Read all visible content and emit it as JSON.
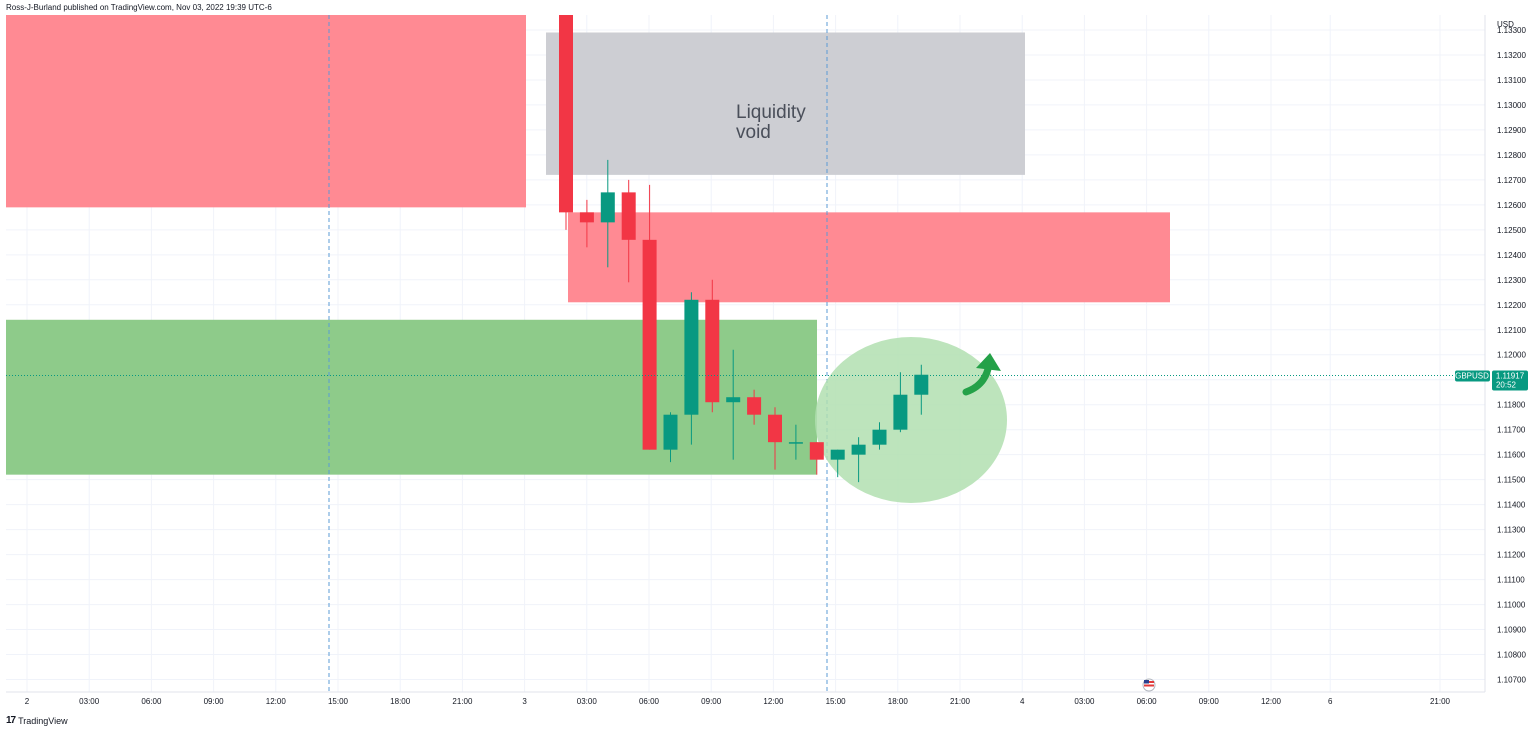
{
  "header": {
    "publisher_line": "Ross-J-Burland published on TradingView.com, Nov 03, 2022 19:39 UTC-6"
  },
  "footer": {
    "brand": "TradingView",
    "brand_glyph": "17"
  },
  "chart_data": {
    "type": "candlestick",
    "symbol": "GBPUSD",
    "currency": "USD",
    "last_price": "1.11917",
    "countdown": "20:52",
    "ylim": [
      1.1065,
      1.1336
    ],
    "y_ticks": [
      "1.13300",
      "1.13200",
      "1.13100",
      "1.13000",
      "1.12900",
      "1.12800",
      "1.12700",
      "1.12600",
      "1.12500",
      "1.12400",
      "1.12300",
      "1.12200",
      "1.12100",
      "1.12000",
      "1.11900",
      "1.11800",
      "1.11700",
      "1.11600",
      "1.11500",
      "1.11400",
      "1.11300",
      "1.11200",
      "1.11100",
      "1.11000",
      "1.10900",
      "1.10800",
      "1.10700"
    ],
    "x_ticks": [
      "2",
      "03:00",
      "06:00",
      "09:00",
      "12:00",
      "15:00",
      "18:00",
      "21:00",
      "3",
      "03:00",
      "06:00",
      "09:00",
      "12:00",
      "15:00",
      "18:00",
      "21:00",
      "4",
      "03:00",
      "06:00",
      "09:00",
      "12:00",
      "6",
      "21:00"
    ],
    "candles": [
      {
        "time": "Nov 3 01:00",
        "open": 1.1345,
        "high": 1.1345,
        "low": 1.125,
        "close": 1.1257
      },
      {
        "time": "Nov 3 02:00",
        "open": 1.1257,
        "high": 1.1262,
        "low": 1.1243,
        "close": 1.1253
      },
      {
        "time": "Nov 3 03:00",
        "open": 1.1253,
        "high": 1.1278,
        "low": 1.1235,
        "close": 1.1265
      },
      {
        "time": "Nov 3 04:00",
        "open": 1.1265,
        "high": 1.127,
        "low": 1.1229,
        "close": 1.1246
      },
      {
        "time": "Nov 3 05:00",
        "open": 1.1246,
        "high": 1.1268,
        "low": 1.1162,
        "close": 1.1162
      },
      {
        "time": "Nov 3 06:00",
        "open": 1.1162,
        "high": 1.1177,
        "low": 1.1157,
        "close": 1.1176
      },
      {
        "time": "Nov 3 07:00",
        "open": 1.1176,
        "high": 1.1225,
        "low": 1.1164,
        "close": 1.1222
      },
      {
        "time": "Nov 3 08:00",
        "open": 1.1222,
        "high": 1.123,
        "low": 1.1177,
        "close": 1.1181
      },
      {
        "time": "Nov 3 09:00",
        "open": 1.1181,
        "high": 1.1202,
        "low": 1.1158,
        "close": 1.1183
      },
      {
        "time": "Nov 3 10:00",
        "open": 1.1183,
        "high": 1.1186,
        "low": 1.1172,
        "close": 1.1176
      },
      {
        "time": "Nov 3 11:00",
        "open": 1.1176,
        "high": 1.1179,
        "low": 1.1154,
        "close": 1.1165
      },
      {
        "time": "Nov 3 12:00",
        "open": 1.1165,
        "high": 1.1172,
        "low": 1.1158,
        "close": 1.1165
      },
      {
        "time": "Nov 3 13:00",
        "open": 1.1165,
        "high": 1.1165,
        "low": 1.1152,
        "close": 1.1158
      },
      {
        "time": "Nov 3 14:00",
        "open": 1.1158,
        "high": 1.1162,
        "low": 1.1151,
        "close": 1.1162
      },
      {
        "time": "Nov 3 15:00",
        "open": 1.116,
        "high": 1.1167,
        "low": 1.1149,
        "close": 1.1164
      },
      {
        "time": "Nov 3 16:00",
        "open": 1.1164,
        "high": 1.1173,
        "low": 1.1162,
        "close": 1.117
      },
      {
        "time": "Nov 3 17:00",
        "open": 1.117,
        "high": 1.1193,
        "low": 1.1169,
        "close": 1.1184
      },
      {
        "time": "Nov 3 18:00",
        "open": 1.1184,
        "high": 1.1196,
        "low": 1.1176,
        "close": 1.1192
      }
    ],
    "zones": [
      {
        "kind": "supply",
        "y_top": 1.1336,
        "y_bottom": 1.1259
      },
      {
        "kind": "liquidity-void",
        "y_top": 1.1329,
        "y_bottom": 1.1272
      },
      {
        "kind": "supply",
        "y_top": 1.1257,
        "y_bottom": 1.1221
      },
      {
        "kind": "demand",
        "y_top": 1.1214,
        "y_bottom": 1.1152
      }
    ],
    "annotations": [
      {
        "text_lines": [
          "Liquidity",
          "void"
        ]
      }
    ],
    "colors": {
      "bull": "#089981",
      "bear": "#f23645",
      "supply_zone": "#ff8a93",
      "void_zone": "#cdced3",
      "demand_zone": "#8ecb8a",
      "highlight_ellipse": "#b2dfb0",
      "arrow": "#24a148",
      "tag": "#089981",
      "session_line": "#5b9bd5"
    },
    "icons": [
      "us-flag-icon",
      "curved-up-arrow-icon",
      "tradingview-logo-icon"
    ]
  }
}
